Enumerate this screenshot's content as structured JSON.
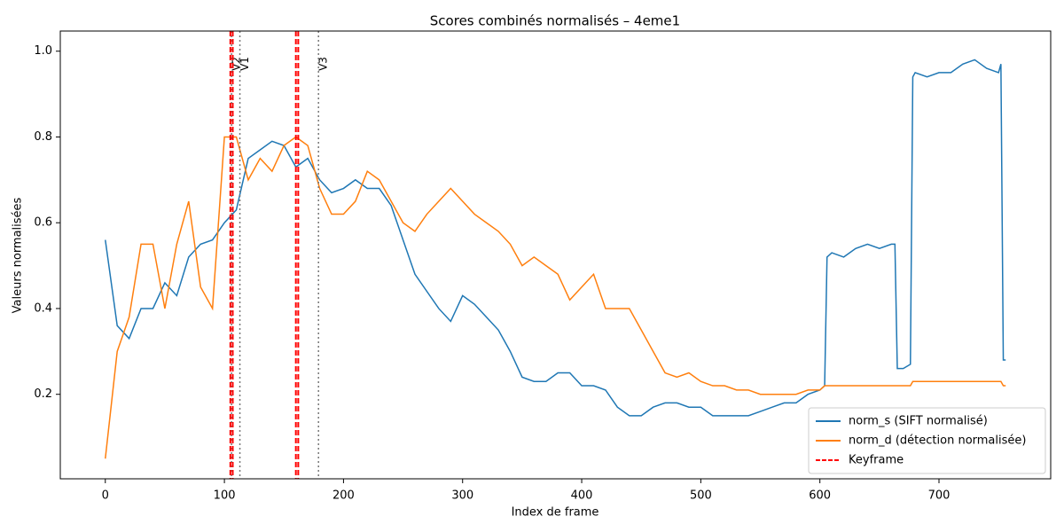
{
  "chart_data": {
    "type": "line",
    "title": "Scores combinés normalisés – 4eme1",
    "x_label": "Index de frame",
    "y_label": "Valeurs normalisées",
    "x": [
      0,
      10,
      20,
      30,
      40,
      50,
      60,
      70,
      80,
      90,
      100,
      110,
      120,
      130,
      140,
      150,
      160,
      170,
      180,
      190,
      200,
      210,
      220,
      230,
      240,
      250,
      260,
      270,
      280,
      290,
      300,
      310,
      320,
      330,
      340,
      350,
      360,
      370,
      380,
      390,
      400,
      410,
      420,
      430,
      440,
      450,
      460,
      470,
      480,
      490,
      500,
      510,
      520,
      530,
      540,
      550,
      560,
      570,
      580,
      590,
      600,
      604,
      606,
      610,
      620,
      630,
      640,
      650,
      660,
      663,
      665,
      670,
      676,
      678,
      680,
      690,
      700,
      710,
      720,
      730,
      740,
      750,
      752,
      754,
      756
    ],
    "series": [
      {
        "name": "norm_s (SIFT normalisé)",
        "color": "#1f77b4",
        "values": [
          0.56,
          0.36,
          0.33,
          0.4,
          0.4,
          0.46,
          0.43,
          0.52,
          0.55,
          0.56,
          0.6,
          0.63,
          0.75,
          0.77,
          0.79,
          0.78,
          0.73,
          0.75,
          0.7,
          0.67,
          0.68,
          0.7,
          0.68,
          0.68,
          0.64,
          0.56,
          0.48,
          0.44,
          0.4,
          0.37,
          0.43,
          0.41,
          0.38,
          0.35,
          0.3,
          0.24,
          0.23,
          0.23,
          0.25,
          0.25,
          0.22,
          0.22,
          0.21,
          0.17,
          0.15,
          0.15,
          0.17,
          0.18,
          0.18,
          0.17,
          0.17,
          0.15,
          0.15,
          0.15,
          0.15,
          0.16,
          0.17,
          0.18,
          0.18,
          0.2,
          0.21,
          0.22,
          0.52,
          0.53,
          0.52,
          0.54,
          0.55,
          0.54,
          0.55,
          0.55,
          0.26,
          0.26,
          0.27,
          0.94,
          0.95,
          0.94,
          0.95,
          0.95,
          0.97,
          0.98,
          0.96,
          0.95,
          0.97,
          0.28,
          0.28
        ]
      },
      {
        "name": "norm_d (détection normalisée)",
        "color": "#ff7f0e",
        "values": [
          0.05,
          0.3,
          0.38,
          0.55,
          0.55,
          0.4,
          0.55,
          0.65,
          0.45,
          0.4,
          0.8,
          0.8,
          0.7,
          0.75,
          0.72,
          0.78,
          0.8,
          0.78,
          0.68,
          0.62,
          0.62,
          0.65,
          0.72,
          0.7,
          0.65,
          0.6,
          0.58,
          0.62,
          0.65,
          0.68,
          0.65,
          0.62,
          0.6,
          0.58,
          0.55,
          0.5,
          0.52,
          0.5,
          0.48,
          0.42,
          0.45,
          0.48,
          0.4,
          0.4,
          0.4,
          0.35,
          0.3,
          0.25,
          0.24,
          0.25,
          0.23,
          0.22,
          0.22,
          0.21,
          0.21,
          0.2,
          0.2,
          0.2,
          0.2,
          0.21,
          0.21,
          0.22,
          0.22,
          0.22,
          0.22,
          0.22,
          0.22,
          0.22,
          0.22,
          0.22,
          0.22,
          0.22,
          0.22,
          0.23,
          0.23,
          0.23,
          0.23,
          0.23,
          0.23,
          0.23,
          0.23,
          0.23,
          0.23,
          0.22,
          0.22
        ]
      }
    ],
    "keyframes": {
      "name": "Keyframe",
      "color": "#ff0000",
      "x": [
        105,
        107,
        160,
        162
      ]
    },
    "annotations": [
      {
        "label": "V2",
        "x": 106
      },
      {
        "label": "V1",
        "x": 113
      },
      {
        "label": "V3",
        "x": 179
      }
    ],
    "xlim": [
      -37.8,
      793.8
    ],
    "ylim": [
      0.003,
      1.047
    ],
    "xticks": [
      0,
      100,
      200,
      300,
      400,
      500,
      600,
      700
    ],
    "yticks": [
      0.2,
      0.4,
      0.6,
      0.8,
      {
        "value": 1,
        "label": "1.0"
      }
    ],
    "legend": "lower right"
  }
}
